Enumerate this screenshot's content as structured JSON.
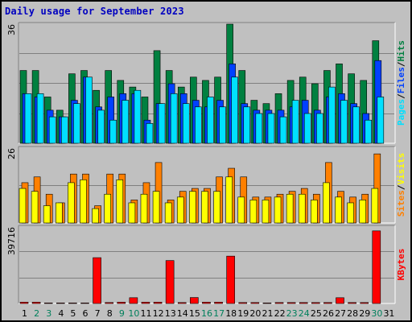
{
  "title": "Daily usage for September 2023",
  "colors": {
    "hits": "#008040",
    "files": "#0040ff",
    "pages": "#00e0ff",
    "visits": "#ff8000",
    "sites": "#ffff00",
    "kbytes": "#ff0000",
    "title": "#0000c0",
    "weekend_label": "#00805c"
  },
  "chart_data": [
    {
      "type": "bar",
      "series": [
        {
          "name": "Hits",
          "values": [
            22,
            22,
            14,
            10,
            21,
            22,
            16,
            22,
            19,
            17,
            14,
            28,
            22,
            17,
            20,
            19,
            20,
            36,
            22,
            13,
            12,
            15,
            19,
            20,
            18,
            22,
            24,
            21,
            19,
            31
          ]
        },
        {
          "name": "Files",
          "values": [
            15,
            14,
            10,
            8,
            13,
            20,
            11,
            14,
            15,
            15,
            7,
            12,
            18,
            15,
            13,
            11,
            13,
            24,
            12,
            10,
            10,
            10,
            11,
            13,
            10,
            14,
            15,
            12,
            9,
            25
          ]
        },
        {
          "name": "Pages",
          "values": [
            15,
            15,
            8,
            8,
            12,
            20,
            10,
            7,
            13,
            16,
            6,
            12,
            15,
            12,
            11,
            14,
            11,
            20,
            11,
            9,
            9,
            8,
            13,
            9,
            9,
            17,
            13,
            11,
            7,
            14
          ]
        }
      ],
      "ymax_label": "36",
      "side_labels": [
        "Pages",
        "Files",
        "Hits"
      ]
    },
    {
      "type": "bar",
      "series": [
        {
          "name": "Visits",
          "values": [
            14,
            16,
            10,
            7,
            17,
            17,
            6,
            17,
            17,
            8,
            14,
            21,
            8,
            11,
            12,
            12,
            16,
            19,
            16,
            9,
            9,
            10,
            11,
            12,
            10,
            21,
            11,
            9,
            10,
            24
          ]
        },
        {
          "name": "Sites",
          "values": [
            12,
            11,
            6,
            7,
            14,
            15,
            5,
            10,
            15,
            7,
            10,
            11,
            7,
            9,
            11,
            11,
            11,
            16,
            9,
            8,
            8,
            9,
            10,
            10,
            8,
            14,
            9,
            7,
            8,
            12
          ]
        }
      ],
      "ymax_label": "26",
      "side_labels": [
        "Sites",
        "Visits"
      ]
    },
    {
      "type": "bar",
      "series": [
        {
          "name": "KBytes",
          "values": [
            700,
            700,
            300,
            300,
            300,
            300,
            23800,
            500,
            700,
            3000,
            700,
            700,
            22300,
            500,
            3100,
            700,
            700,
            24600,
            500,
            500,
            300,
            500,
            500,
            500,
            500,
            500,
            3000,
            500,
            500,
            37700
          ]
        }
      ],
      "ymax_label": "39716",
      "ymax": 39716,
      "side_labels": [
        "KBytes"
      ]
    }
  ],
  "x_labels": [
    "1",
    "2",
    "3",
    "4",
    "5",
    "6",
    "7",
    "8",
    "9",
    "10",
    "11",
    "12",
    "13",
    "14",
    "15",
    "16",
    "17",
    "18",
    "19",
    "20",
    "21",
    "22",
    "23",
    "24",
    "25",
    "26",
    "27",
    "28",
    "29",
    "30",
    "31"
  ],
  "weekend_days": [
    2,
    3,
    9,
    10,
    16,
    17,
    23,
    24,
    30
  ]
}
